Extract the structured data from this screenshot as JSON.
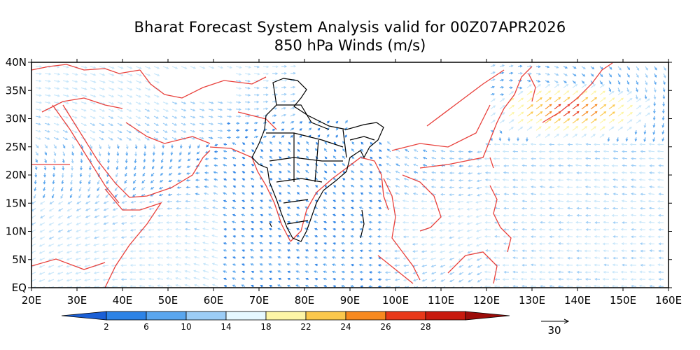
{
  "title": "Bharat Forecast System Analysis valid for 00Z07APR2026",
  "subtitle": "850 hPa Winds (m/s)",
  "map": {
    "lon_range": [
      20,
      160
    ],
    "lat_range": [
      0,
      40
    ],
    "x_ticks": [
      "20E",
      "30E",
      "40E",
      "50E",
      "60E",
      "70E",
      "80E",
      "90E",
      "100E",
      "110E",
      "120E",
      "130E",
      "140E",
      "150E",
      "160E"
    ],
    "y_ticks": [
      "EQ",
      "5N",
      "10N",
      "15N",
      "20N",
      "25N",
      "30N",
      "35N",
      "40N"
    ],
    "coastline_color": "#e8413c",
    "india_border_color": "#000000"
  },
  "colorbar": {
    "labels": [
      "2",
      "6",
      "10",
      "14",
      "18",
      "22",
      "24",
      "26",
      "28"
    ],
    "colors": [
      "#1a5fd6",
      "#2d83e6",
      "#5aa6ee",
      "#9ccdf6",
      "#e6f8ff",
      "#fdf5a6",
      "#fbc84c",
      "#f7891f",
      "#e8391a",
      "#c81a0e",
      "#9c0d0a"
    ]
  },
  "reference_vector": {
    "label": "30"
  }
}
